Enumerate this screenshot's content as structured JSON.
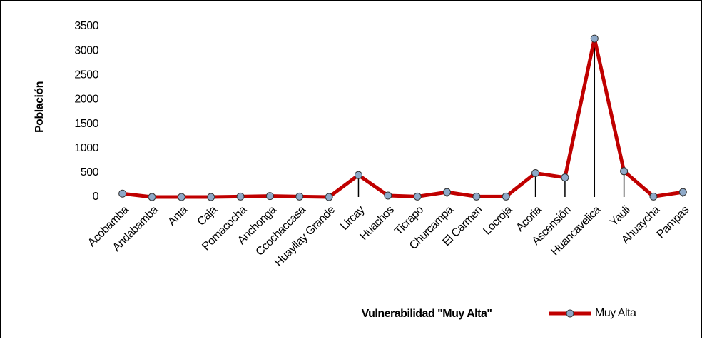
{
  "chart_data": {
    "type": "line",
    "x_label": "Vulnerabilidad \"Muy Alta\"",
    "y_label": "Población",
    "categories": [
      "Acobamba",
      "Andabamba",
      "Anta",
      "Caja",
      "Pomacocha",
      "Anchonga",
      "Ccochaccasa",
      "Huayllay Grande",
      "Lircay",
      "Huachos",
      "Ticrapo",
      "Churcampa",
      "El Carmen",
      "Locroja",
      "Acoria",
      "Ascensión",
      "Huancavelica",
      "Yauli",
      "Ahuaycha",
      "Pampas"
    ],
    "series": [
      {
        "name": "Muy Alta",
        "color": "#c00000",
        "marker_color": "#8ea9c8",
        "values": [
          70,
          0,
          0,
          0,
          10,
          20,
          10,
          0,
          450,
          30,
          10,
          100,
          10,
          10,
          490,
          400,
          3250,
          530,
          10,
          100
        ]
      }
    ],
    "ylim": [
      0,
      3500
    ],
    "yticks": [
      0,
      500,
      1000,
      1500,
      2000,
      2500,
      3000,
      3500
    ],
    "drop_lines": true,
    "legend": "bottom-right"
  }
}
